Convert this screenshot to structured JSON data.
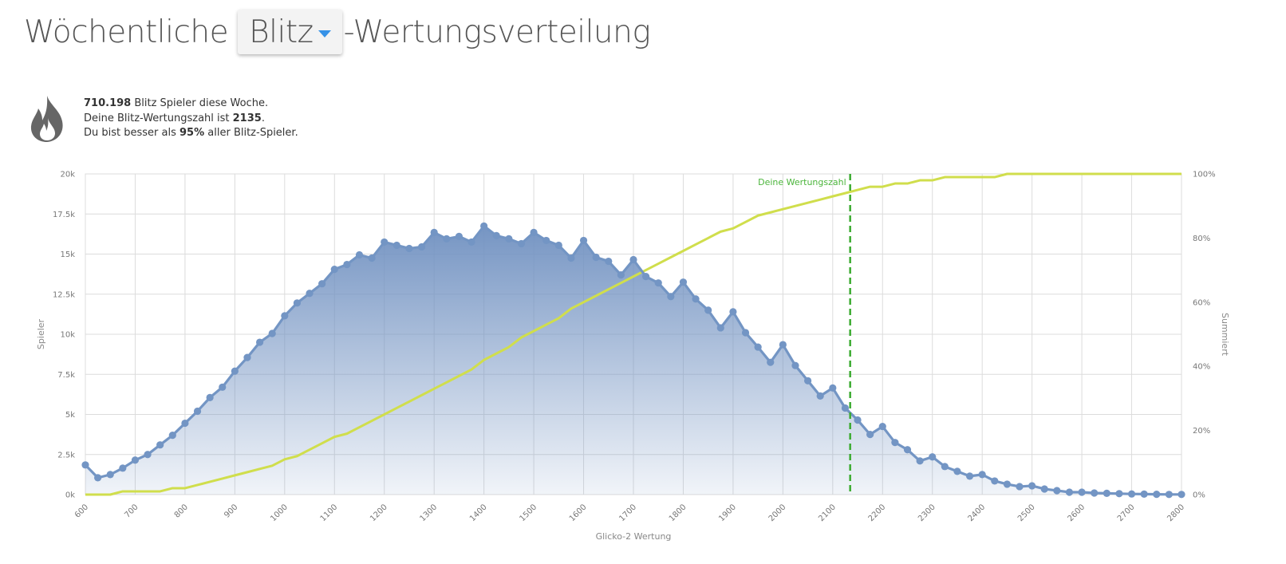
{
  "header": {
    "title_prefix": "Wöchentliche",
    "variant": "Blitz",
    "title_suffix": "-Wertungsverteilung"
  },
  "stats": {
    "icon": "fire-icon",
    "players_count": "710.198",
    "players_text": " Blitz Spieler diese Woche.",
    "rating_text": "Deine Blitz-Wertungszahl ist ",
    "rating_value": "2135",
    "rating_end": ".",
    "better_text_pre": "Du bist besser als ",
    "better_percent": "95%",
    "better_text_post": " aller Blitz-Spieler."
  },
  "chart_data": {
    "type": "area",
    "xlabel": "Glicko-2 Wertung",
    "ylabel": "Spieler",
    "y2label": "Summiert",
    "xlim": [
      600,
      2800
    ],
    "ylim": [
      0,
      20000
    ],
    "y2lim": [
      0,
      100
    ],
    "x_ticks": [
      600,
      700,
      800,
      900,
      1000,
      1100,
      1200,
      1300,
      1400,
      1500,
      1600,
      1700,
      1800,
      1900,
      2000,
      2100,
      2200,
      2300,
      2400,
      2500,
      2600,
      2700,
      2800
    ],
    "y_ticks": [
      "0k",
      "2.5k",
      "5k",
      "7.5k",
      "10k",
      "12.5k",
      "15k",
      "17.5k",
      "20k"
    ],
    "y2_ticks": [
      "0%",
      "20%",
      "40%",
      "60%",
      "80%",
      "100%"
    ],
    "grid": true,
    "x": [
      600,
      625,
      650,
      675,
      700,
      725,
      750,
      775,
      800,
      825,
      850,
      875,
      900,
      925,
      950,
      975,
      1000,
      1025,
      1050,
      1075,
      1100,
      1125,
      1150,
      1175,
      1200,
      1225,
      1250,
      1275,
      1300,
      1325,
      1350,
      1375,
      1400,
      1425,
      1450,
      1475,
      1500,
      1525,
      1550,
      1575,
      1600,
      1625,
      1650,
      1675,
      1700,
      1725,
      1750,
      1775,
      1800,
      1825,
      1850,
      1875,
      1900,
      1925,
      1950,
      1975,
      2000,
      2025,
      2050,
      2075,
      2100,
      2125,
      2150,
      2175,
      2200,
      2225,
      2250,
      2275,
      2300,
      2325,
      2350,
      2375,
      2400,
      2425,
      2450,
      2475,
      2500,
      2525,
      2550,
      2575,
      2600,
      2625,
      2650,
      2675,
      2700,
      2725,
      2750,
      2775,
      2800
    ],
    "series": [
      {
        "name": "Spieler",
        "color": "#7395c4",
        "values": [
          1850,
          1050,
          1250,
          1650,
          2150,
          2500,
          3100,
          3700,
          4450,
          5200,
          6050,
          6700,
          7700,
          8550,
          9500,
          10050,
          11150,
          11950,
          12550,
          13150,
          14050,
          14350,
          14950,
          14750,
          15750,
          15550,
          15350,
          15450,
          16350,
          15950,
          16100,
          15750,
          16750,
          16150,
          15950,
          15650,
          16350,
          15850,
          15550,
          14750,
          15850,
          14800,
          14550,
          13700,
          14650,
          13600,
          13200,
          12350,
          13250,
          12200,
          11500,
          10400,
          11400,
          10100,
          9200,
          8250,
          9350,
          8050,
          7100,
          6150,
          6650,
          5400,
          4650,
          3750,
          4250,
          3250,
          2800,
          2100,
          2350,
          1750,
          1450,
          1150,
          1250,
          850,
          650,
          500,
          550,
          350,
          250,
          150,
          150,
          100,
          80,
          60,
          40,
          30,
          20,
          10,
          10
        ]
      },
      {
        "name": "Summiert",
        "color": "#d0de4c",
        "values": [
          0,
          0,
          0,
          1,
          1,
          1,
          1,
          2,
          2,
          3,
          4,
          5,
          6,
          7,
          8,
          9,
          11,
          12,
          14,
          16,
          18,
          19,
          21,
          23,
          25,
          27,
          29,
          31,
          33,
          35,
          37,
          39,
          42,
          44,
          46,
          49,
          51,
          53,
          55,
          58,
          60,
          62,
          64,
          66,
          68,
          70,
          72,
          74,
          76,
          78,
          80,
          82,
          83,
          85,
          87,
          88,
          89,
          90,
          91,
          92,
          93,
          94,
          95,
          96,
          96,
          97,
          97,
          98,
          98,
          99,
          99,
          99,
          99,
          99,
          100,
          100,
          100,
          100,
          100,
          100,
          100,
          100,
          100,
          100,
          100,
          100,
          100,
          100,
          100
        ]
      }
    ],
    "marker": {
      "x": 2135,
      "label": "Deine Wertungszahl",
      "color": "#3bab30"
    }
  }
}
